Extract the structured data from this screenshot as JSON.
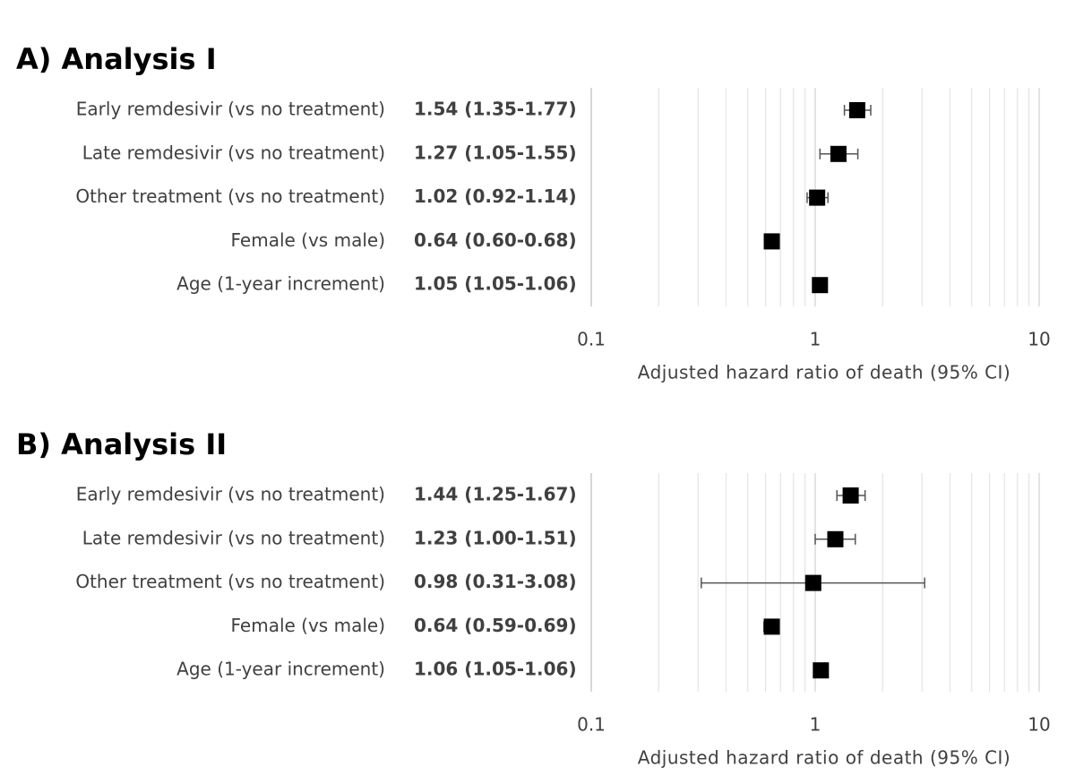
{
  "chart_data": [
    {
      "type": "forest",
      "title": "A) Analysis I",
      "categories": [
        "Early remdesivir (vs no treatment)",
        "Late remdesivir (vs no treatment)",
        "Other treatment (vs no treatment)",
        "Female (vs male)",
        "Age (1-year increment)"
      ],
      "values": [
        1.54,
        1.27,
        1.02,
        0.64,
        1.05
      ],
      "ci_low": [
        1.35,
        1.05,
        0.92,
        0.6,
        1.05
      ],
      "ci_high": [
        1.77,
        1.55,
        1.14,
        0.68,
        1.06
      ],
      "value_labels": [
        "1.54 (1.35-1.77)",
        "1.27 (1.05-1.55)",
        "1.02 (0.92-1.14)",
        "0.64 (0.60-0.68)",
        "1.05 (1.05-1.06)"
      ],
      "color": "#000000",
      "log_x": true,
      "grid": true,
      "xlim": [
        0.1,
        10
      ],
      "xticks": [
        0.1,
        1,
        10
      ],
      "minor_xticks": [
        0.2,
        0.3,
        0.4,
        0.5,
        0.6,
        0.7,
        0.8,
        0.9,
        2,
        3,
        4,
        5,
        6,
        7,
        8,
        9
      ],
      "xlabel": "Adjusted hazard ratio of death (95% CI)"
    },
    {
      "type": "forest",
      "title": "B) Analysis II",
      "categories": [
        "Early remdesivir (vs no treatment)",
        "Late remdesivir (vs no treatment)",
        "Other treatment (vs no treatment)",
        "Female (vs male)",
        "Age (1-year increment)"
      ],
      "values": [
        1.44,
        1.23,
        0.98,
        0.64,
        1.06
      ],
      "ci_low": [
        1.25,
        1.0,
        0.31,
        0.59,
        1.05
      ],
      "ci_high": [
        1.67,
        1.51,
        3.08,
        0.69,
        1.06
      ],
      "value_labels": [
        "1.44 (1.25-1.67)",
        "1.23 (1.00-1.51)",
        "0.98 (0.31-3.08)",
        "0.64 (0.59-0.69)",
        "1.06 (1.05-1.06)"
      ],
      "color": "#000000",
      "log_x": true,
      "grid": true,
      "xlim": [
        0.1,
        10
      ],
      "xticks": [
        0.1,
        1,
        10
      ],
      "minor_xticks": [
        0.2,
        0.3,
        0.4,
        0.5,
        0.6,
        0.7,
        0.8,
        0.9,
        2,
        3,
        4,
        5,
        6,
        7,
        8,
        9
      ],
      "xlabel": "Adjusted hazard ratio of death (95% CI)"
    }
  ]
}
